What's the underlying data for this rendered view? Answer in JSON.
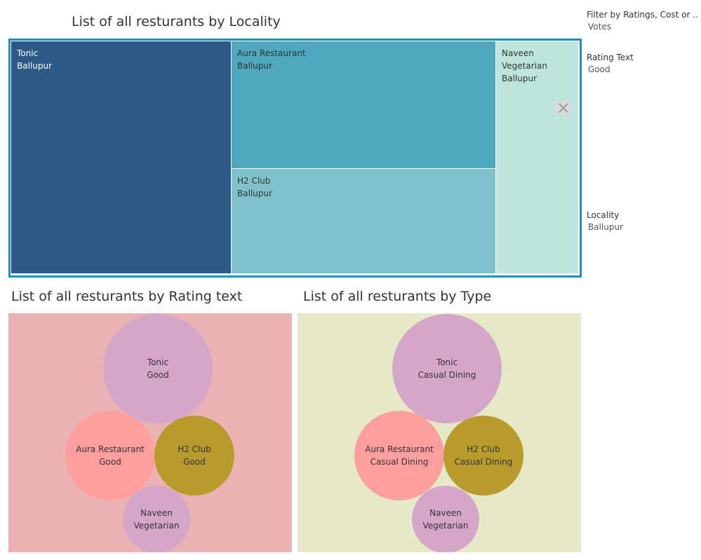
{
  "treemap": {
    "title": "List of all resturants by Locality",
    "chart_data": {
      "type": "treemap",
      "title": "List of all resturants by Locality",
      "items": [
        {
          "name": "Tonic",
          "locality": "Ballupur",
          "color": "#2c5a86",
          "value": 38
        },
        {
          "name": "Aura Restaurant",
          "locality": "Ballupur",
          "color": "#4fa8be",
          "value": 25
        },
        {
          "name": "H2 Club",
          "locality": "Ballupur",
          "color": "#80c2cb",
          "value": 21
        },
        {
          "name": "Naveen Vegetarian",
          "locality": "Ballupur",
          "color": "#bde5db",
          "value": 16
        }
      ]
    }
  },
  "bubbles_rating": {
    "title": "List of all resturants by Rating text",
    "background": "#ebb2b3",
    "chart_data": {
      "type": "bubble",
      "title": "List of all resturants by Rating text",
      "items": [
        {
          "name": "Tonic",
          "label": "Good",
          "color": "#d4a7c9",
          "size": 100
        },
        {
          "name": "Aura Restaurant",
          "label": "Good",
          "color": "#ff9f9d",
          "size": 66
        },
        {
          "name": "H2 Club",
          "label": "Good",
          "color": "#b89a2d",
          "size": 54
        },
        {
          "name": "Naveen Vegetarian",
          "label": "",
          "color": "#d4a7c9",
          "size": 38
        }
      ]
    }
  },
  "bubbles_type": {
    "title": "List of all resturants by Type",
    "background": "#e5e9c8",
    "chart_data": {
      "type": "bubble",
      "title": "List of all resturants by Type",
      "items": [
        {
          "name": "Tonic",
          "label": "Casual Dining",
          "color": "#d4a7c9",
          "size": 100
        },
        {
          "name": "Aura Restaurant",
          "label": "Casual Dining",
          "color": "#ff9f9d",
          "size": 66
        },
        {
          "name": "H2 Club",
          "label": "Casual Dining",
          "color": "#b89a2d",
          "size": 54
        },
        {
          "name": "Naveen Vegetarian",
          "label": "",
          "color": "#d4a7c9",
          "size": 38
        }
      ]
    }
  },
  "filters": [
    {
      "title": "Filter by Ratings, Cost or ..",
      "value": "Votes"
    },
    {
      "title": "Rating Text",
      "value": "Good"
    },
    {
      "title": "Locality",
      "value": "Ballupur"
    }
  ]
}
